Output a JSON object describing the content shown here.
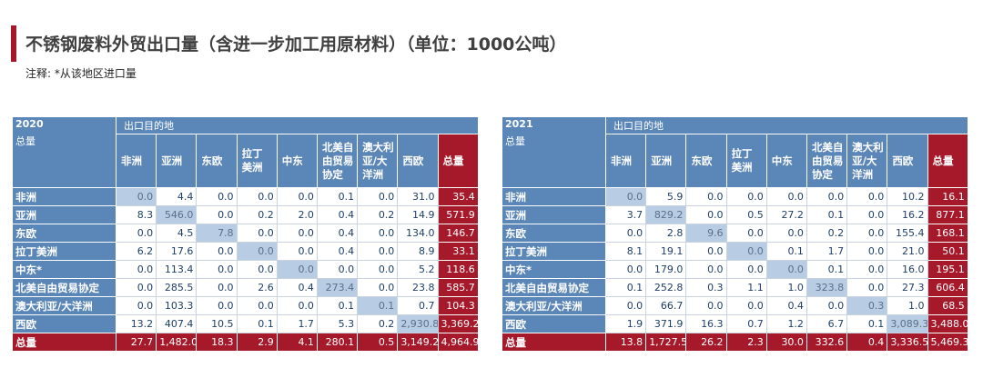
{
  "header": {
    "title": "不锈钢废料外贸出口量（含进一步加工用原材料）（单位：1000公吨）",
    "note": "注释: *从该地区进口量"
  },
  "tables": [
    {
      "year": "2020",
      "dest_label": "出口目的地",
      "total_label": "总量",
      "columns": [
        "非洲",
        "亚洲",
        "东欧",
        "拉丁美洲",
        "中东",
        "北美自由贸易协定",
        "澳大利亚/大洋洲",
        "西欧",
        "总量"
      ],
      "rows": [
        {
          "label": "非洲",
          "cells": [
            "0.0",
            "4.4",
            "0.0",
            "0.0",
            "0.0",
            "0.1",
            "0.0",
            "31.0",
            "35.4"
          ]
        },
        {
          "label": "亚洲",
          "cells": [
            "8.3",
            "546.0",
            "0.0",
            "0.2",
            "2.0",
            "0.4",
            "0.2",
            "14.9",
            "571.9"
          ]
        },
        {
          "label": "东欧",
          "cells": [
            "0.0",
            "4.5",
            "7.8",
            "0.0",
            "0.0",
            "0.4",
            "0.0",
            "134.0",
            "146.7"
          ]
        },
        {
          "label": "拉丁美洲",
          "cells": [
            "6.2",
            "17.6",
            "0.0",
            "0.0",
            "0.0",
            "0.4",
            "0.0",
            "8.9",
            "33.1"
          ]
        },
        {
          "label": "中东*",
          "cells": [
            "0.0",
            "113.4",
            "0.0",
            "0.0",
            "0.0",
            "0.0",
            "0.0",
            "5.2",
            "118.6"
          ]
        },
        {
          "label": "北美自由贸易协定",
          "cells": [
            "0.0",
            "285.5",
            "0.0",
            "2.6",
            "0.4",
            "273.4",
            "0.0",
            "23.8",
            "585.7"
          ]
        },
        {
          "label": "澳大利亚/大洋洲",
          "cells": [
            "0.0",
            "103.3",
            "0.0",
            "0.0",
            "0.0",
            "0.1",
            "0.1",
            "0.7",
            "104.3"
          ]
        },
        {
          "label": "西欧",
          "cells": [
            "13.2",
            "407.4",
            "10.5",
            "0.1",
            "1.7",
            "5.3",
            "0.2",
            "2,930.8",
            "3,369.2"
          ]
        },
        {
          "label": "总量",
          "cells": [
            "27.7",
            "1,482.0",
            "18.3",
            "2.9",
            "4.1",
            "280.1",
            "0.5",
            "3,149.2",
            "4,964.9"
          ]
        }
      ]
    },
    {
      "year": "2021",
      "dest_label": "出口目的地",
      "total_label": "总量",
      "columns": [
        "非洲",
        "亚洲",
        "东欧",
        "拉丁美洲",
        "中东",
        "北美自由贸易协定",
        "澳大利亚/大洋洲",
        "西欧",
        "总量"
      ],
      "rows": [
        {
          "label": "非洲",
          "cells": [
            "0.0",
            "5.9",
            "0.0",
            "0.0",
            "0.0",
            "0.0",
            "0.0",
            "10.2",
            "16.1"
          ]
        },
        {
          "label": "亚洲",
          "cells": [
            "3.7",
            "829.2",
            "0.0",
            "0.5",
            "27.2",
            "0.1",
            "0.0",
            "16.2",
            "877.1"
          ]
        },
        {
          "label": "东欧",
          "cells": [
            "0.0",
            "2.8",
            "9.6",
            "0.0",
            "0.0",
            "0.2",
            "0.0",
            "155.4",
            "168.1"
          ]
        },
        {
          "label": "拉丁美洲",
          "cells": [
            "8.1",
            "19.1",
            "0.0",
            "0.0",
            "0.1",
            "1.7",
            "0.0",
            "21.0",
            "50.1"
          ]
        },
        {
          "label": "中东*",
          "cells": [
            "0.0",
            "179.0",
            "0.0",
            "0.0",
            "0.0",
            "0.1",
            "0.0",
            "16.0",
            "195.1"
          ]
        },
        {
          "label": "北美自由贸易协定",
          "cells": [
            "0.1",
            "252.8",
            "0.3",
            "1.1",
            "1.0",
            "323.8",
            "0.0",
            "27.3",
            "606.4"
          ]
        },
        {
          "label": "澳大利亚/大洋洲",
          "cells": [
            "0.0",
            "66.7",
            "0.0",
            "0.0",
            "0.4",
            "0.0",
            "0.3",
            "1.0",
            "68.5"
          ]
        },
        {
          "label": "西欧",
          "cells": [
            "1.9",
            "371.9",
            "16.3",
            "0.7",
            "1.2",
            "6.7",
            "0.1",
            "3,089.3",
            "3,488.0"
          ]
        },
        {
          "label": "总量",
          "cells": [
            "13.8",
            "1,727.5",
            "26.2",
            "2.3",
            "30.0",
            "332.6",
            "0.4",
            "3,336.5",
            "5,469.3"
          ]
        }
      ]
    }
  ]
}
